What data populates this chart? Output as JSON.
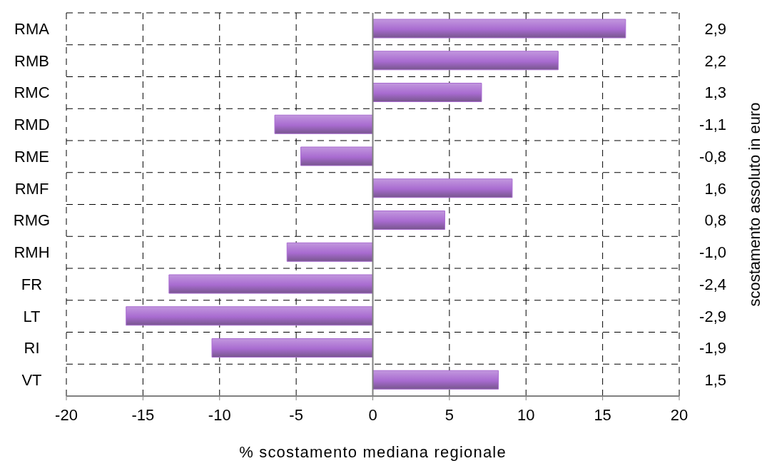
{
  "chart_data": {
    "type": "bar",
    "orientation": "horizontal",
    "categories": [
      "RMA",
      "RMB",
      "RMC",
      "RMD",
      "RME",
      "RMF",
      "RMG",
      "RMH",
      "FR",
      "LT",
      "RI",
      "VT"
    ],
    "y2_categories": [
      "2,9",
      "2,2",
      "1,3",
      "-1,1",
      "-0,8",
      "1,6",
      "0,8",
      "-1,0",
      "-2,4",
      "-2,9",
      "-1,9",
      "1,5"
    ],
    "values": [
      16.5,
      12.1,
      7.1,
      -6.4,
      -4.7,
      9.1,
      4.7,
      -5.6,
      -13.3,
      -16.1,
      -10.5,
      8.2
    ],
    "color": "#a86bd0",
    "xlim": [
      -20,
      20
    ],
    "xticks": [
      -20,
      -15,
      -10,
      -5,
      0,
      5,
      10,
      15,
      20
    ],
    "xlabel": "% scostamento mediana regionale",
    "y2label": "scostamento assoluto in euro",
    "grid": true,
    "ref_lines": [
      {
        "axis": "x",
        "value": 0,
        "color": "#808080"
      }
    ]
  }
}
